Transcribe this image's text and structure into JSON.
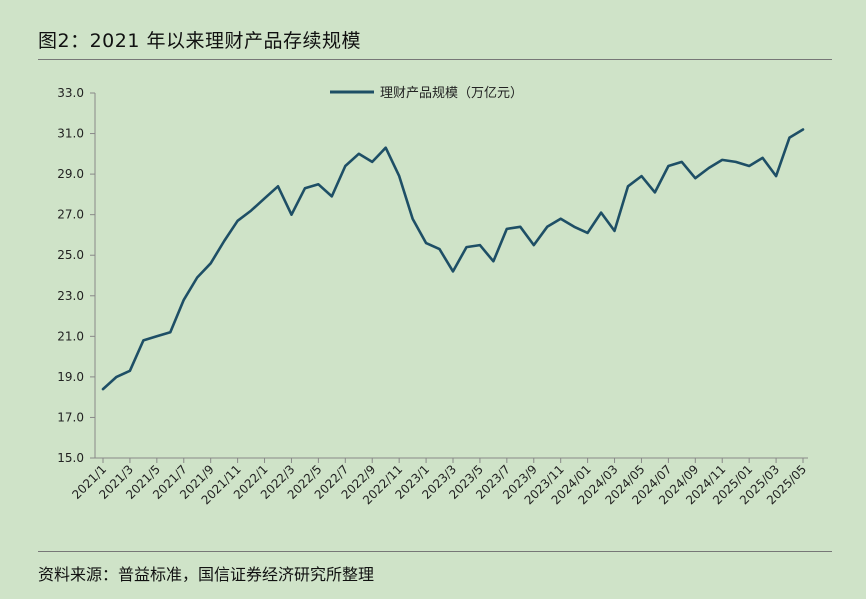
{
  "header": {
    "title": "图2：2021 年以来理财产品存续规模"
  },
  "footer": {
    "source": "资料来源：普益标准，国信证券经济研究所整理"
  },
  "chart_data": {
    "type": "line",
    "title": "",
    "xlabel": "",
    "ylabel": "",
    "ylim": [
      15,
      33
    ],
    "yticks": [
      "15.0",
      "17.0",
      "19.0",
      "21.0",
      "23.0",
      "25.0",
      "27.0",
      "29.0",
      "31.0",
      "33.0"
    ],
    "x_tick_labels": [
      "2021/1",
      "2021/3",
      "2021/5",
      "2021/7",
      "2021/9",
      "2021/11",
      "2022/1",
      "2022/3",
      "2022/5",
      "2022/7",
      "2022/9",
      "2022/11",
      "2023/1",
      "2023/3",
      "2023/5",
      "2023/7",
      "2023/9",
      "2023/11",
      "2024/01",
      "2024/03",
      "2024/05",
      "2024/07",
      "2024/09",
      "2024/11",
      "2025/01",
      "2025/03",
      "2025/05"
    ],
    "legend_position": "top",
    "series": [
      {
        "name": "理财产品规模（万亿元）",
        "color": "#1e4f66",
        "values": [
          18.4,
          19.0,
          19.3,
          20.8,
          21.0,
          21.2,
          22.8,
          23.9,
          24.6,
          25.7,
          26.7,
          27.2,
          27.8,
          28.4,
          27.0,
          28.3,
          28.5,
          27.9,
          29.4,
          30.0,
          29.6,
          30.3,
          28.9,
          26.8,
          25.6,
          25.3,
          24.2,
          25.4,
          25.5,
          24.7,
          26.3,
          26.4,
          25.5,
          26.4,
          26.8,
          26.4,
          26.1,
          27.1,
          26.2,
          28.4,
          28.9,
          28.1,
          29.4,
          29.6,
          28.8,
          29.3,
          29.7,
          29.6,
          29.4,
          29.8,
          28.9,
          30.8,
          31.2
        ]
      }
    ]
  }
}
